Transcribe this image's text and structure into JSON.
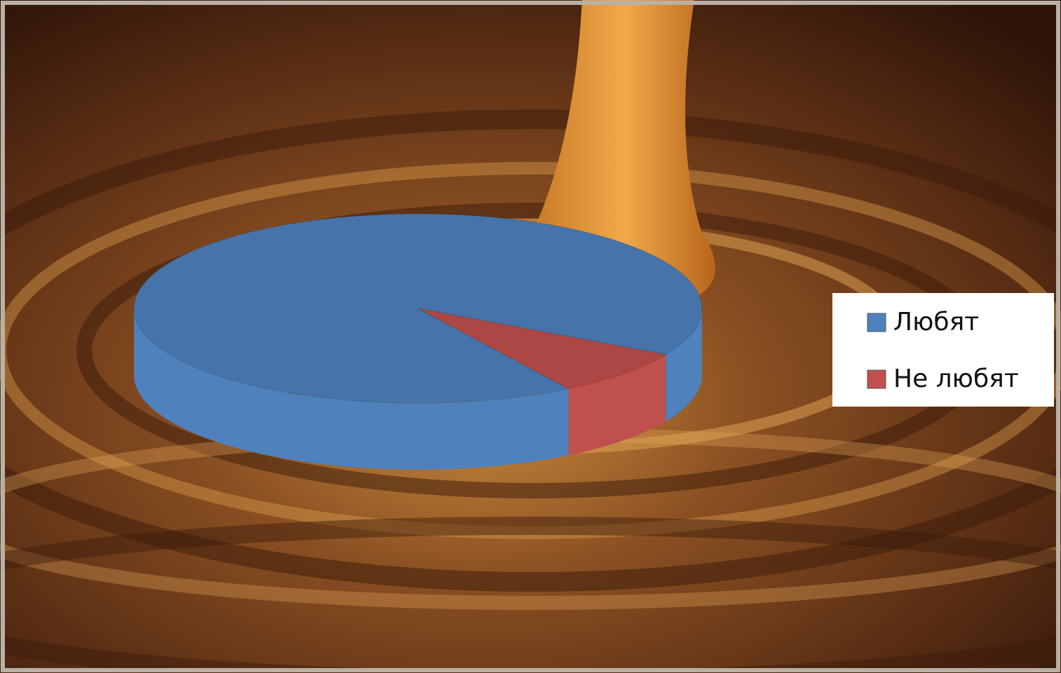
{
  "chart_data": {
    "type": "pie",
    "categories": [
      "Любят",
      "Не любят"
    ],
    "values": [
      92,
      8
    ],
    "colors": [
      "#4f81bd",
      "#c0504d"
    ],
    "legend": "right"
  }
}
